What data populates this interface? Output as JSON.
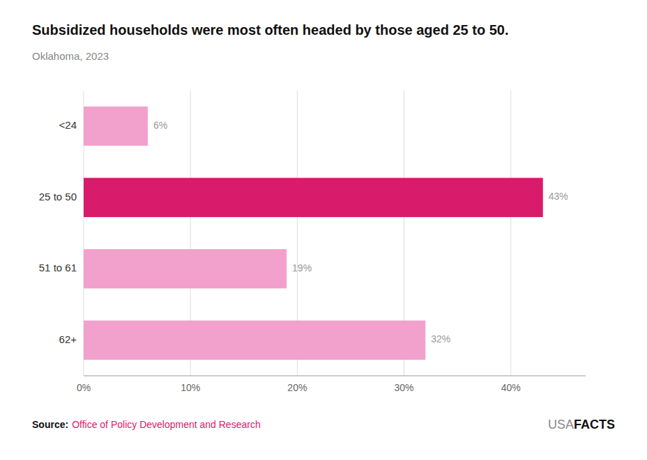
{
  "chart_data": {
    "type": "bar",
    "orientation": "horizontal",
    "title": "Subsidized households were most often headed by those aged 25 to 50.",
    "subtitle": "Oklahoma, 2023",
    "categories": [
      "<24",
      "25 to 50",
      "51 to 61",
      "62+"
    ],
    "values": [
      6,
      43,
      19,
      32
    ],
    "value_labels": [
      "6%",
      "43%",
      "19%",
      "32%"
    ],
    "data_labels": true,
    "colors": [
      "#f2a0cc",
      "#d81b6a",
      "#f2a0cc",
      "#f2a0cc"
    ],
    "xlim": [
      0,
      47
    ],
    "xticks": [
      {
        "value": 0,
        "label": "0%"
      },
      {
        "value": 10,
        "label": "10%"
      },
      {
        "value": 20,
        "label": "20%"
      },
      {
        "value": 30,
        "label": "30%"
      },
      {
        "value": 40,
        "label": "40%"
      }
    ],
    "grid": true,
    "annotations": [
      "Source:",
      "Office of Policy Development and Research",
      "USA",
      "FACTS"
    ]
  }
}
